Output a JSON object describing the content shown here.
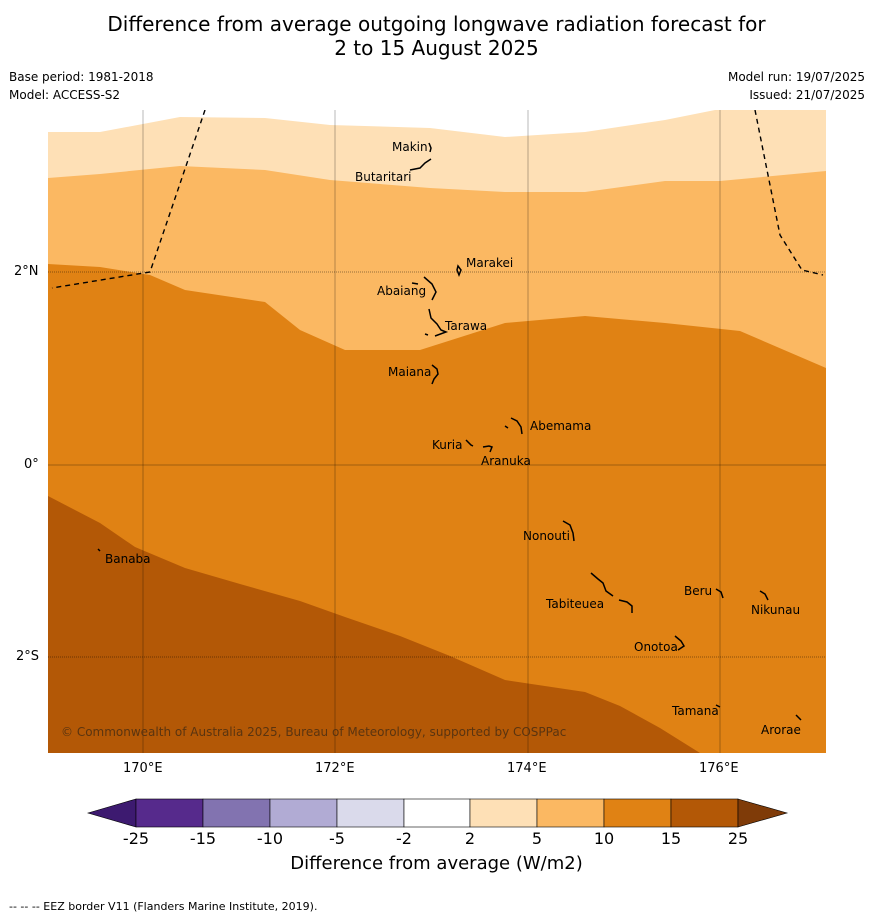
{
  "title_line1": "Difference from average outgoing longwave radiation forecast for",
  "title_line2": "2 to 15 August 2025",
  "base_period": "Base period: 1981-2018",
  "model": "Model: ACCESS-S2",
  "model_run": "Model run: 19/07/2025",
  "issued": "Issued: 21/07/2025",
  "lat_labels": [
    "2°N",
    "0°",
    "2°S"
  ],
  "lon_labels": [
    "170°E",
    "172°E",
    "174°E",
    "176°E"
  ],
  "places": [
    "Makin",
    "Butaritari",
    "Marakei",
    "Abaiang",
    "Tarawa",
    "Maiana",
    "Abemama",
    "Kuria",
    "Aranuka",
    "Nonouti",
    "Banaba",
    "Tabiteuea",
    "Beru",
    "Nikunau",
    "Onotoa",
    "Tamana",
    "Arorae"
  ],
  "copyright": "© Commonwealth of Australia 2025, Bureau of Meteorology, supported by COSPPac",
  "colorbar": {
    "ticks": [
      "-25",
      "-15",
      "-10",
      "-5",
      "-2",
      "2",
      "5",
      "10",
      "15",
      "25"
    ],
    "colors": [
      "#3d1a70",
      "#562a8c",
      "#8273b0",
      "#b1abd4",
      "#dadaeb",
      "#ffffff",
      "#fee0b6",
      "#fbb862",
      "#e08214",
      "#b35806",
      "#7f3b08"
    ],
    "title": "Difference from average (W/m2)"
  },
  "legend_eez": "--  --  -- EEZ border V11 (Flanders Marine Institute, 2019)."
}
